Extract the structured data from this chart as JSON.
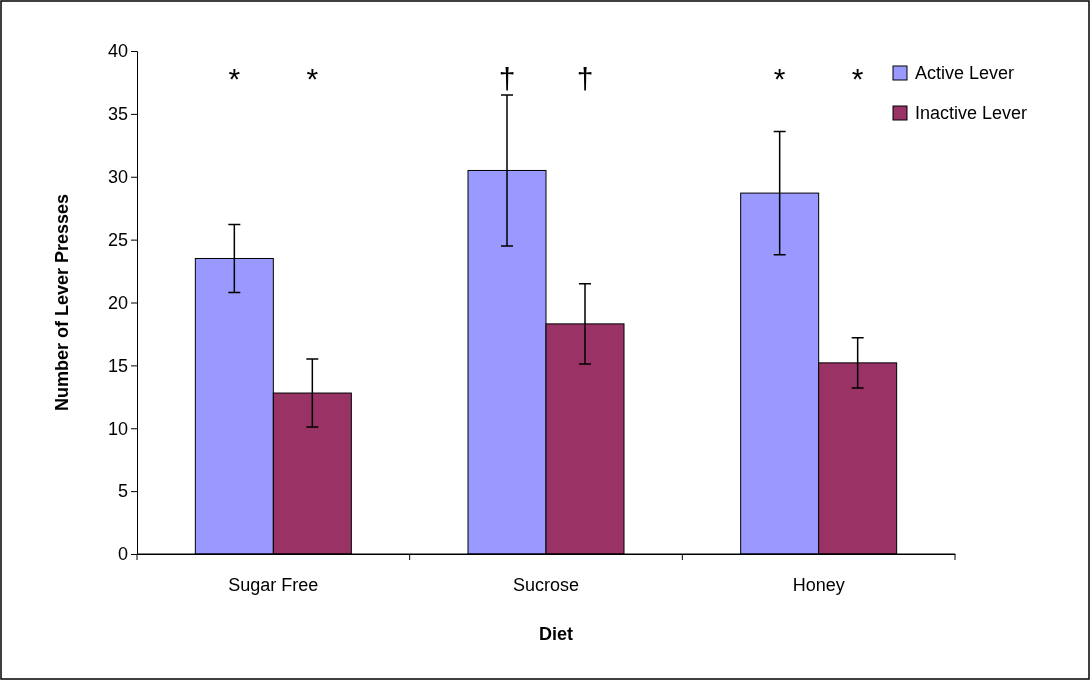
{
  "chart_data": {
    "type": "bar",
    "xlabel": "Diet",
    "ylabel": "Number of Lever Presses",
    "categories": [
      "Sugar Free",
      "Sucrose",
      "Honey"
    ],
    "series": [
      {
        "name": "Active Lever",
        "color": "#9999ff",
        "values": [
          23.5,
          30.5,
          28.7
        ],
        "errors": [
          2.7,
          6,
          4.9
        ]
      },
      {
        "name": "Inactive Lever",
        "color": "#993366",
        "values": [
          12.8,
          18.3,
          15.2
        ],
        "errors": [
          2.7,
          3.2,
          2
        ]
      }
    ],
    "ylim": [
      0,
      40
    ],
    "yticks": [
      0,
      5,
      10,
      15,
      20,
      25,
      30,
      35,
      40
    ],
    "grid": false,
    "legend": "top right",
    "annotations": [
      "*",
      "*",
      "†",
      "†",
      "*",
      "*"
    ]
  }
}
